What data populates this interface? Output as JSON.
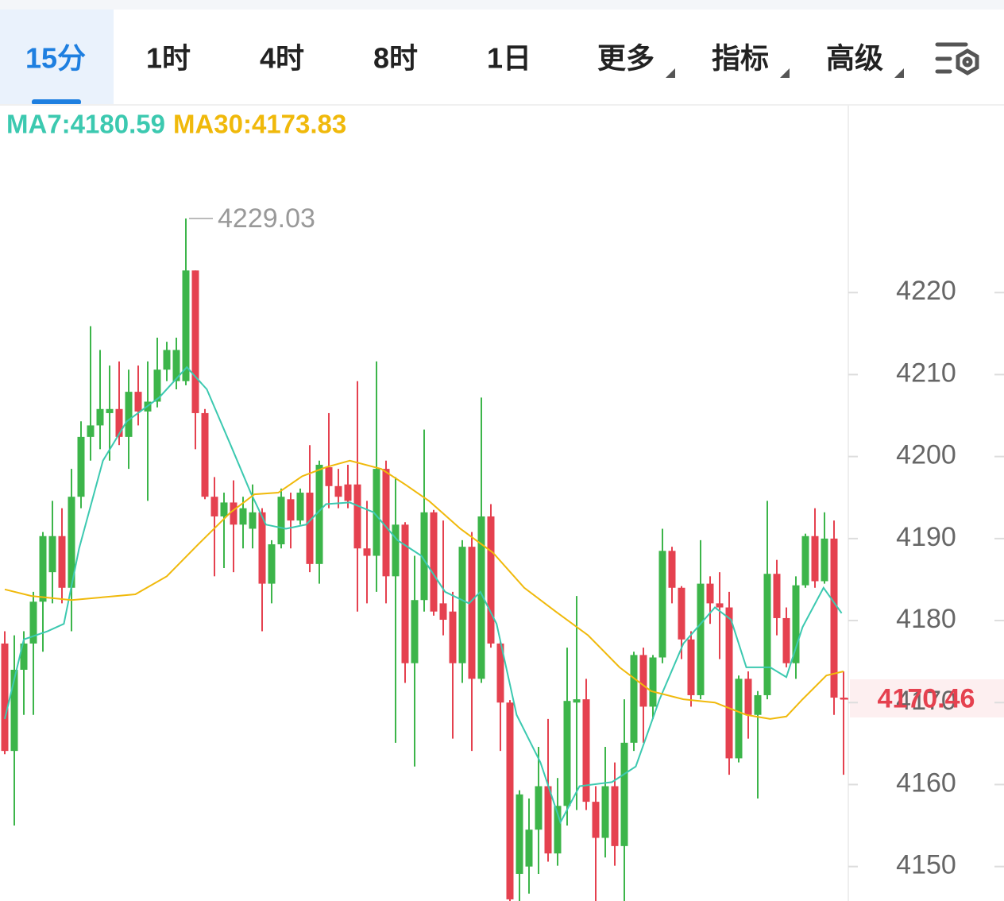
{
  "tabs": [
    "15分",
    "1时",
    "4时",
    "8时",
    "1日",
    "更多",
    "指标",
    "高级"
  ],
  "selected_tab": 0,
  "chart_data": {
    "type": "candlestick",
    "up_color": "#3cb54a",
    "down_color": "#e5414f",
    "ylim": [
      4145.8,
      4242.6
    ],
    "yticks": [
      4150,
      4160,
      4170,
      4180,
      4190,
      4200,
      4210,
      4220
    ],
    "current_price": 4170.46,
    "high_annotation_index": 19,
    "open": [
      4177.2,
      4164.1,
      4174.0,
      4177.2,
      4182.3,
      4185.9,
      4190.3,
      4184.0,
      4195.1,
      4202.4,
      4203.8,
      4205.3,
      4205.8,
      4202.4,
      4207.9,
      4205.5,
      4206.7,
      4210.6,
      4209.2,
      4209.2,
      4222.7,
      4205.3,
      4195.1,
      4192.7,
      4194.4,
      4191.7,
      4191.2,
      4193.2,
      4184.5,
      4189.3,
      4194.8,
      4192.2,
      4195.6,
      4186.9,
      4198.7,
      4196.4,
      4196.6,
      4196.6,
      4188.8,
      4187.9,
      4198.5,
      4185.4,
      4191.7,
      4174.8,
      4182.5,
      4193.2,
      4182.1,
      4181.1,
      4174.8,
      4189.0,
      4172.9,
      4192.7,
      4177.2,
      4170.0,
      4149.1,
      4150.0,
      4154.5,
      4159.8,
      4151.6,
      4157.4,
      4170.0,
      4170.4,
      4157.9,
      4153.5,
      4159.8,
      4152.5,
      4165.1,
      4175.8,
      4169.5,
      4175.5,
      4188.5,
      4184.0,
      4177.7,
      4170.9,
      4184.5,
      4182.1,
      4181.6,
      4163.2,
      4172.9,
      4168.5,
      4170.9,
      4185.7,
      4180.3,
      4174.8,
      4184.3,
      4190.3,
      4184.8,
      4190.0,
      4170.6
    ],
    "high": [
      4178.7,
      4178.2,
      4178.7,
      4183.5,
      4190.8,
      4194.6,
      4193.7,
      4198.5,
      4204.3,
      4215.9,
      4213.0,
      4211.1,
      4211.6,
      4210.6,
      4211.1,
      4211.6,
      4214.5,
      4214.0,
      4214.5,
      4229.03,
      4222.7,
      4205.8,
      4197.5,
      4195.6,
      4197.1,
      4195.1,
      4196.6,
      4193.7,
      4189.8,
      4196.1,
      4195.6,
      4196.1,
      4201.4,
      4199.5,
      4205.3,
      4198.5,
      4199.0,
      4209.2,
      4194.6,
      4211.6,
      4199.5,
      4197.5,
      4192.0,
      4187.9,
      4203.3,
      4193.5,
      4192.2,
      4183.5,
      4189.8,
      4190.8,
      4207.2,
      4194.2,
      4177.5,
      4170.3,
      4159.3,
      4158.3,
      4164.6,
      4168.0,
      4160.8,
      4176.7,
      4183.0,
      4172.9,
      4159.8,
      4164.6,
      4162.7,
      4170.4,
      4176.2,
      4176.7,
      4175.8,
      4191.2,
      4189.0,
      4184.2,
      4178.7,
      4189.8,
      4185.4,
      4185.9,
      4183.5,
      4173.3,
      4173.8,
      4171.4,
      4194.6,
      4187.4,
      4181.6,
      4185.4,
      4190.6,
      4193.7,
      4193.2,
      4192.2,
      4173.8
    ],
    "low": [
      4163.7,
      4155.0,
      4168.5,
      4168.5,
      4176.2,
      4182.1,
      4182.1,
      4178.7,
      4193.7,
      4199.5,
      4200.9,
      4199.5,
      4201.4,
      4198.5,
      4203.8,
      4194.6,
      4206.0,
      4209.2,
      4208.2,
      4208.7,
      4200.9,
      4194.8,
      4185.4,
      4186.4,
      4185.9,
      4188.8,
      4188.8,
      4178.7,
      4182.1,
      4188.8,
      4188.8,
      4191.7,
      4185.9,
      4184.5,
      4193.7,
      4193.7,
      4193.7,
      4181.1,
      4182.1,
      4183.5,
      4182.1,
      4165.1,
      4172.4,
      4162.2,
      4181.1,
      4180.6,
      4178.2,
      4165.6,
      4172.4,
      4164.1,
      4172.4,
      4176.7,
      4164.1,
      4144.0,
      4144.0,
      4146.7,
      4149.1,
      4150.6,
      4150.1,
      4155.0,
      4156.9,
      4156.9,
      4144.5,
      4151.1,
      4150.1,
      4144.0,
      4164.1,
      4165.1,
      4168.0,
      4174.8,
      4182.1,
      4175.3,
      4169.5,
      4170.4,
      4179.6,
      4175.3,
      4161.2,
      4162.7,
      4165.6,
      4158.3,
      4170.4,
      4178.2,
      4174.3,
      4172.9,
      4184.0,
      4184.0,
      4184.5,
      4168.5,
      4161.2
    ],
    "close": [
      4164.1,
      4174.0,
      4177.2,
      4182.3,
      4190.3,
      4190.3,
      4184.0,
      4195.1,
      4202.4,
      4203.8,
      4205.8,
      4205.8,
      4202.4,
      4207.9,
      4205.5,
      4206.7,
      4210.6,
      4213.0,
      4213.0,
      4222.7,
      4205.3,
      4195.1,
      4192.7,
      4194.4,
      4191.7,
      4193.7,
      4193.2,
      4184.5,
      4189.3,
      4195.1,
      4192.2,
      4195.6,
      4186.9,
      4199.0,
      4196.4,
      4195.1,
      4194.6,
      4188.8,
      4187.9,
      4198.5,
      4185.4,
      4191.7,
      4174.8,
      4182.5,
      4193.2,
      4181.1,
      4180.1,
      4174.8,
      4189.0,
      4172.9,
      4192.7,
      4177.2,
      4170.0,
      4146.0,
      4158.8,
      4154.5,
      4159.8,
      4151.6,
      4157.4,
      4170.2,
      4170.4,
      4157.9,
      4153.5,
      4159.8,
      4152.5,
      4165.1,
      4175.8,
      4169.5,
      4175.5,
      4188.5,
      4184.0,
      4177.7,
      4170.9,
      4184.5,
      4182.1,
      4181.6,
      4163.2,
      4172.9,
      4168.5,
      4170.9,
      4185.7,
      4180.3,
      4174.8,
      4184.3,
      4190.3,
      4184.8,
      4190.0,
      4170.6,
      4170.46
    ],
    "lines": [
      {
        "name": "MA7:4180.59",
        "color": "#3cc9b0",
        "x": [
          0,
          2,
          4.5,
          6.2,
          7.8,
          10.3,
          12.8,
          16.2,
          19.1,
          21.2,
          23.7,
          25.8,
          27.4,
          29.5,
          31.6,
          33.7,
          36.2,
          38.7,
          41.2,
          43.7,
          46.2,
          48.7,
          49.9,
          51.6,
          53.7,
          56.2,
          58.3,
          60.3,
          63.7,
          66.2,
          68.7,
          71.2,
          74.5,
          76.2,
          77.8,
          80.3,
          82,
          83.7,
          85.9,
          87.8
        ],
        "values": [
          4168.0,
          4177.7,
          4178.7,
          4179.6,
          4188.8,
          4199.5,
          4204.3,
          4207.2,
          4210.9,
          4208.2,
          4201.4,
          4195.6,
          4191.7,
          4191.2,
          4191.7,
          4194.2,
          4194.4,
          4193.2,
          4189.8,
          4187.9,
          4183.5,
          4182.1,
          4183.5,
          4179.6,
          4168.5,
          4162.7,
          4155.4,
          4159.8,
          4160.3,
          4162.2,
          4170.4,
          4177.2,
          4181.6,
          4180.1,
          4174.3,
          4174.3,
          4173.1,
          4179.2,
          4184.0,
          4180.9
        ]
      },
      {
        "name": "MA30:4173.83",
        "color": "#f0b90b",
        "x": [
          0,
          2.8,
          7,
          13.7,
          17,
          20.3,
          23.7,
          26.2,
          28.7,
          31.2,
          33.7,
          36.2,
          39.5,
          42,
          44.5,
          47.8,
          51.2,
          54.5,
          57.8,
          61.2,
          64.5,
          67.8,
          71.2,
          74.5,
          77.8,
          80.3,
          82,
          83.7,
          86.2,
          88
        ],
        "values": [
          4183.8,
          4183.0,
          4182.5,
          4183.2,
          4185.4,
          4189.3,
          4193.2,
          4195.4,
          4195.6,
          4197.6,
          4198.7,
          4199.5,
          4198.5,
          4196.6,
          4194.6,
          4191.2,
          4188.3,
          4184.0,
          4181.1,
          4178.2,
          4174.3,
          4171.4,
          4170.4,
          4170.0,
          4168.5,
          4168.0,
          4168.3,
          4170.4,
          4173.3,
          4173.8
        ]
      }
    ]
  }
}
